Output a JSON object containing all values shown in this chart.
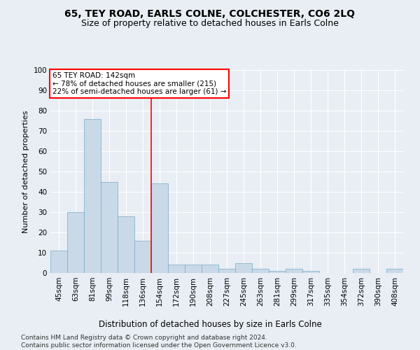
{
  "title": "65, TEY ROAD, EARLS COLNE, COLCHESTER, CO6 2LQ",
  "subtitle": "Size of property relative to detached houses in Earls Colne",
  "xlabel": "Distribution of detached houses by size in Earls Colne",
  "ylabel": "Number of detached properties",
  "categories": [
    "45sqm",
    "63sqm",
    "81sqm",
    "99sqm",
    "118sqm",
    "136sqm",
    "154sqm",
    "172sqm",
    "190sqm",
    "208sqm",
    "227sqm",
    "245sqm",
    "263sqm",
    "281sqm",
    "299sqm",
    "317sqm",
    "335sqm",
    "354sqm",
    "372sqm",
    "390sqm",
    "408sqm"
  ],
  "values": [
    11,
    30,
    76,
    45,
    28,
    16,
    44,
    4,
    4,
    4,
    2,
    5,
    2,
    1,
    2,
    1,
    0,
    0,
    2,
    0,
    2
  ],
  "bar_color": "#c9d9e8",
  "bar_edge_color": "#7aaac8",
  "annotation_text": "65 TEY ROAD: 142sqm\n← 78% of detached houses are smaller (215)\n22% of semi-detached houses are larger (61) →",
  "annotation_box_color": "white",
  "annotation_box_edge_color": "red",
  "vline_color": "red",
  "vline_x": 5.5,
  "ylim": [
    0,
    100
  ],
  "yticks": [
    0,
    10,
    20,
    30,
    40,
    50,
    60,
    70,
    80,
    90,
    100
  ],
  "background_color": "#e8eef4",
  "plot_background_color": "#e8eef4",
  "grid_color": "white",
  "footnote": "Contains HM Land Registry data © Crown copyright and database right 2024.\nContains public sector information licensed under the Open Government Licence v3.0.",
  "title_fontsize": 10,
  "subtitle_fontsize": 9,
  "xlabel_fontsize": 8.5,
  "ylabel_fontsize": 8,
  "tick_fontsize": 7.5,
  "footnote_fontsize": 6.5
}
